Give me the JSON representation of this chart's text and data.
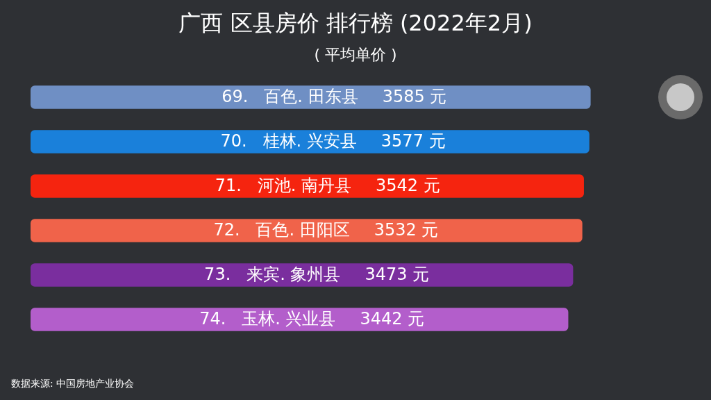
{
  "chart_data": {
    "type": "bar",
    "orientation": "horizontal",
    "title": "广西 区县房价 排行榜 (2022年2月)",
    "subtitle": "( 平均单价 )",
    "categories": [
      "69.   百色. 田东县",
      "70.   桂林. 兴安县",
      "71.   河池. 南丹县",
      "72.   百色. 田阳区",
      "73.   来宾. 象州县",
      "74.   玉林. 兴业县"
    ],
    "values": [
      3585,
      3577,
      3542,
      3532,
      3473,
      3442
    ],
    "value_labels": [
      "3585 元",
      "3577 元",
      "3542 元",
      "3532 元",
      "3473 元",
      "3442 元"
    ],
    "colors": [
      "#6f8fc4",
      "#1a80da",
      "#f5240f",
      "#f0634a",
      "#7a2e9e",
      "#b35ecb"
    ],
    "annotations": [
      "数据来源: 中国房地产业协会"
    ]
  }
}
